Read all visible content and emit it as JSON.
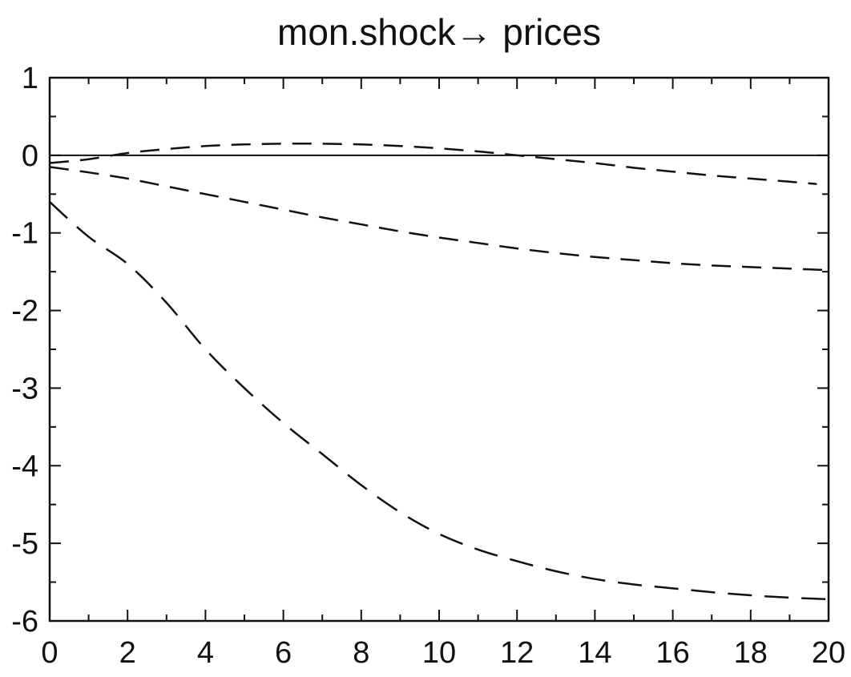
{
  "chart_data": {
    "type": "line",
    "title": "mon.shock→ prices",
    "xlabel": "",
    "ylabel": "",
    "xlim": [
      0,
      20
    ],
    "ylim": [
      -6,
      1
    ],
    "xticks": [
      0,
      2,
      4,
      6,
      8,
      10,
      12,
      14,
      16,
      18,
      20
    ],
    "yticks": [
      1,
      0,
      -1,
      -2,
      -3,
      -4,
      -5,
      -6
    ],
    "grid": false,
    "legend": "none",
    "reference_line": {
      "y": 0,
      "style": "solid"
    },
    "series": [
      {
        "line_style": "dashed",
        "x": [
          0,
          1,
          2,
          3,
          4,
          5,
          6,
          7,
          8,
          9,
          10,
          11,
          12,
          13,
          14,
          15,
          16,
          17,
          18,
          19,
          19.7
        ],
        "y": [
          -0.1,
          -0.05,
          0.03,
          0.08,
          0.12,
          0.14,
          0.15,
          0.15,
          0.14,
          0.12,
          0.09,
          0.05,
          0.0,
          -0.05,
          -0.1,
          -0.16,
          -0.21,
          -0.26,
          -0.3,
          -0.34,
          -0.37
        ]
      },
      {
        "line_style": "dashed",
        "x": [
          0,
          1,
          2,
          3,
          4,
          5,
          6,
          7,
          8,
          9,
          10,
          11,
          12,
          13,
          14,
          15,
          16,
          17,
          18,
          19,
          20
        ],
        "y": [
          -0.15,
          -0.22,
          -0.3,
          -0.4,
          -0.5,
          -0.6,
          -0.7,
          -0.8,
          -0.89,
          -0.98,
          -1.06,
          -1.13,
          -1.2,
          -1.26,
          -1.31,
          -1.35,
          -1.39,
          -1.42,
          -1.44,
          -1.46,
          -1.48
        ]
      },
      {
        "line_style": "long-dashed",
        "x": [
          0,
          1,
          2,
          3,
          4,
          5,
          6,
          7,
          8,
          9,
          10,
          11,
          12,
          13,
          14,
          15,
          16,
          17,
          18,
          19,
          20
        ],
        "y": [
          -0.6,
          -1.05,
          -1.4,
          -1.9,
          -2.5,
          -3.0,
          -3.45,
          -3.85,
          -4.25,
          -4.6,
          -4.88,
          -5.08,
          -5.23,
          -5.36,
          -5.46,
          -5.53,
          -5.58,
          -5.63,
          -5.67,
          -5.7,
          -5.72
        ]
      }
    ]
  }
}
